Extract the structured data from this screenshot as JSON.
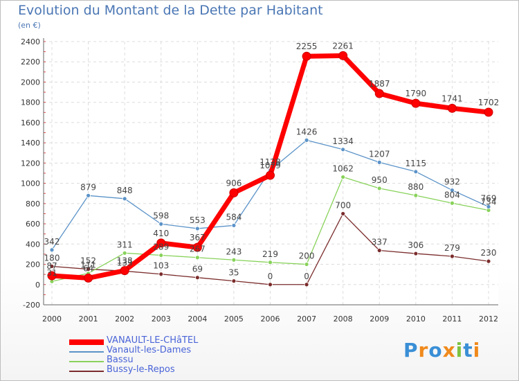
{
  "title": "Evolution du Montant de la Dette par Habitant",
  "subtitle": "(en €)",
  "logo": "Proxiti",
  "chart_data": {
    "type": "line",
    "x": [
      "2000",
      "2001",
      "2002",
      "2003",
      "2004",
      "2005",
      "2006",
      "2007",
      "2008",
      "2009",
      "2010",
      "2011",
      "2012"
    ],
    "ylim": [
      -200,
      2400
    ],
    "yticks": [
      -200,
      0,
      200,
      400,
      600,
      800,
      1000,
      1200,
      1400,
      1600,
      1800,
      2000,
      2200,
      2400
    ],
    "grid": true,
    "legend_position": "bottom-left",
    "series": [
      {
        "name": "VANAULT-LE-CHâTEL",
        "color": "#ff0000",
        "values": [
          87,
          64,
          138,
          410,
          367,
          906,
          1079,
          2255,
          2261,
          1887,
          1790,
          1741,
          1702
        ],
        "labels": [
          "87",
          "64",
          "138",
          "410",
          "367",
          "906",
          "1079",
          "2255",
          "2261",
          "1887",
          "1790",
          "1741",
          "1702"
        ]
      },
      {
        "name": "Vanault-les-Dames",
        "color": "#5b93c8",
        "values": [
          342,
          879,
          848,
          598,
          553,
          584,
          1128,
          1426,
          1334,
          1207,
          1115,
          932,
          769
        ],
        "labels": [
          "342",
          "879",
          "848",
          "598",
          "553",
          "584",
          "1128",
          "1426",
          "1334",
          "1207",
          "1115",
          "932",
          "769"
        ]
      },
      {
        "name": "Bassu",
        "color": "#88d25a",
        "values": [
          31,
          111,
          311,
          289,
          267,
          243,
          219,
          200,
          1062,
          950,
          880,
          804,
          734
        ],
        "labels": [
          "31",
          "111",
          "311",
          "289",
          "267",
          "243",
          "219",
          "200",
          "1062",
          "950",
          "880",
          "804",
          "734"
        ]
      },
      {
        "name": "Bussy-le-Repos",
        "color": "#7b2c2c",
        "values": [
          180,
          152,
          133,
          103,
          69,
          35,
          0,
          0,
          700,
          337,
          306,
          279,
          230
        ],
        "labels": [
          "180",
          "152",
          "133",
          "103",
          "69",
          "35",
          "0",
          "0",
          "700",
          "337",
          "306",
          "279",
          "230"
        ]
      }
    ]
  }
}
